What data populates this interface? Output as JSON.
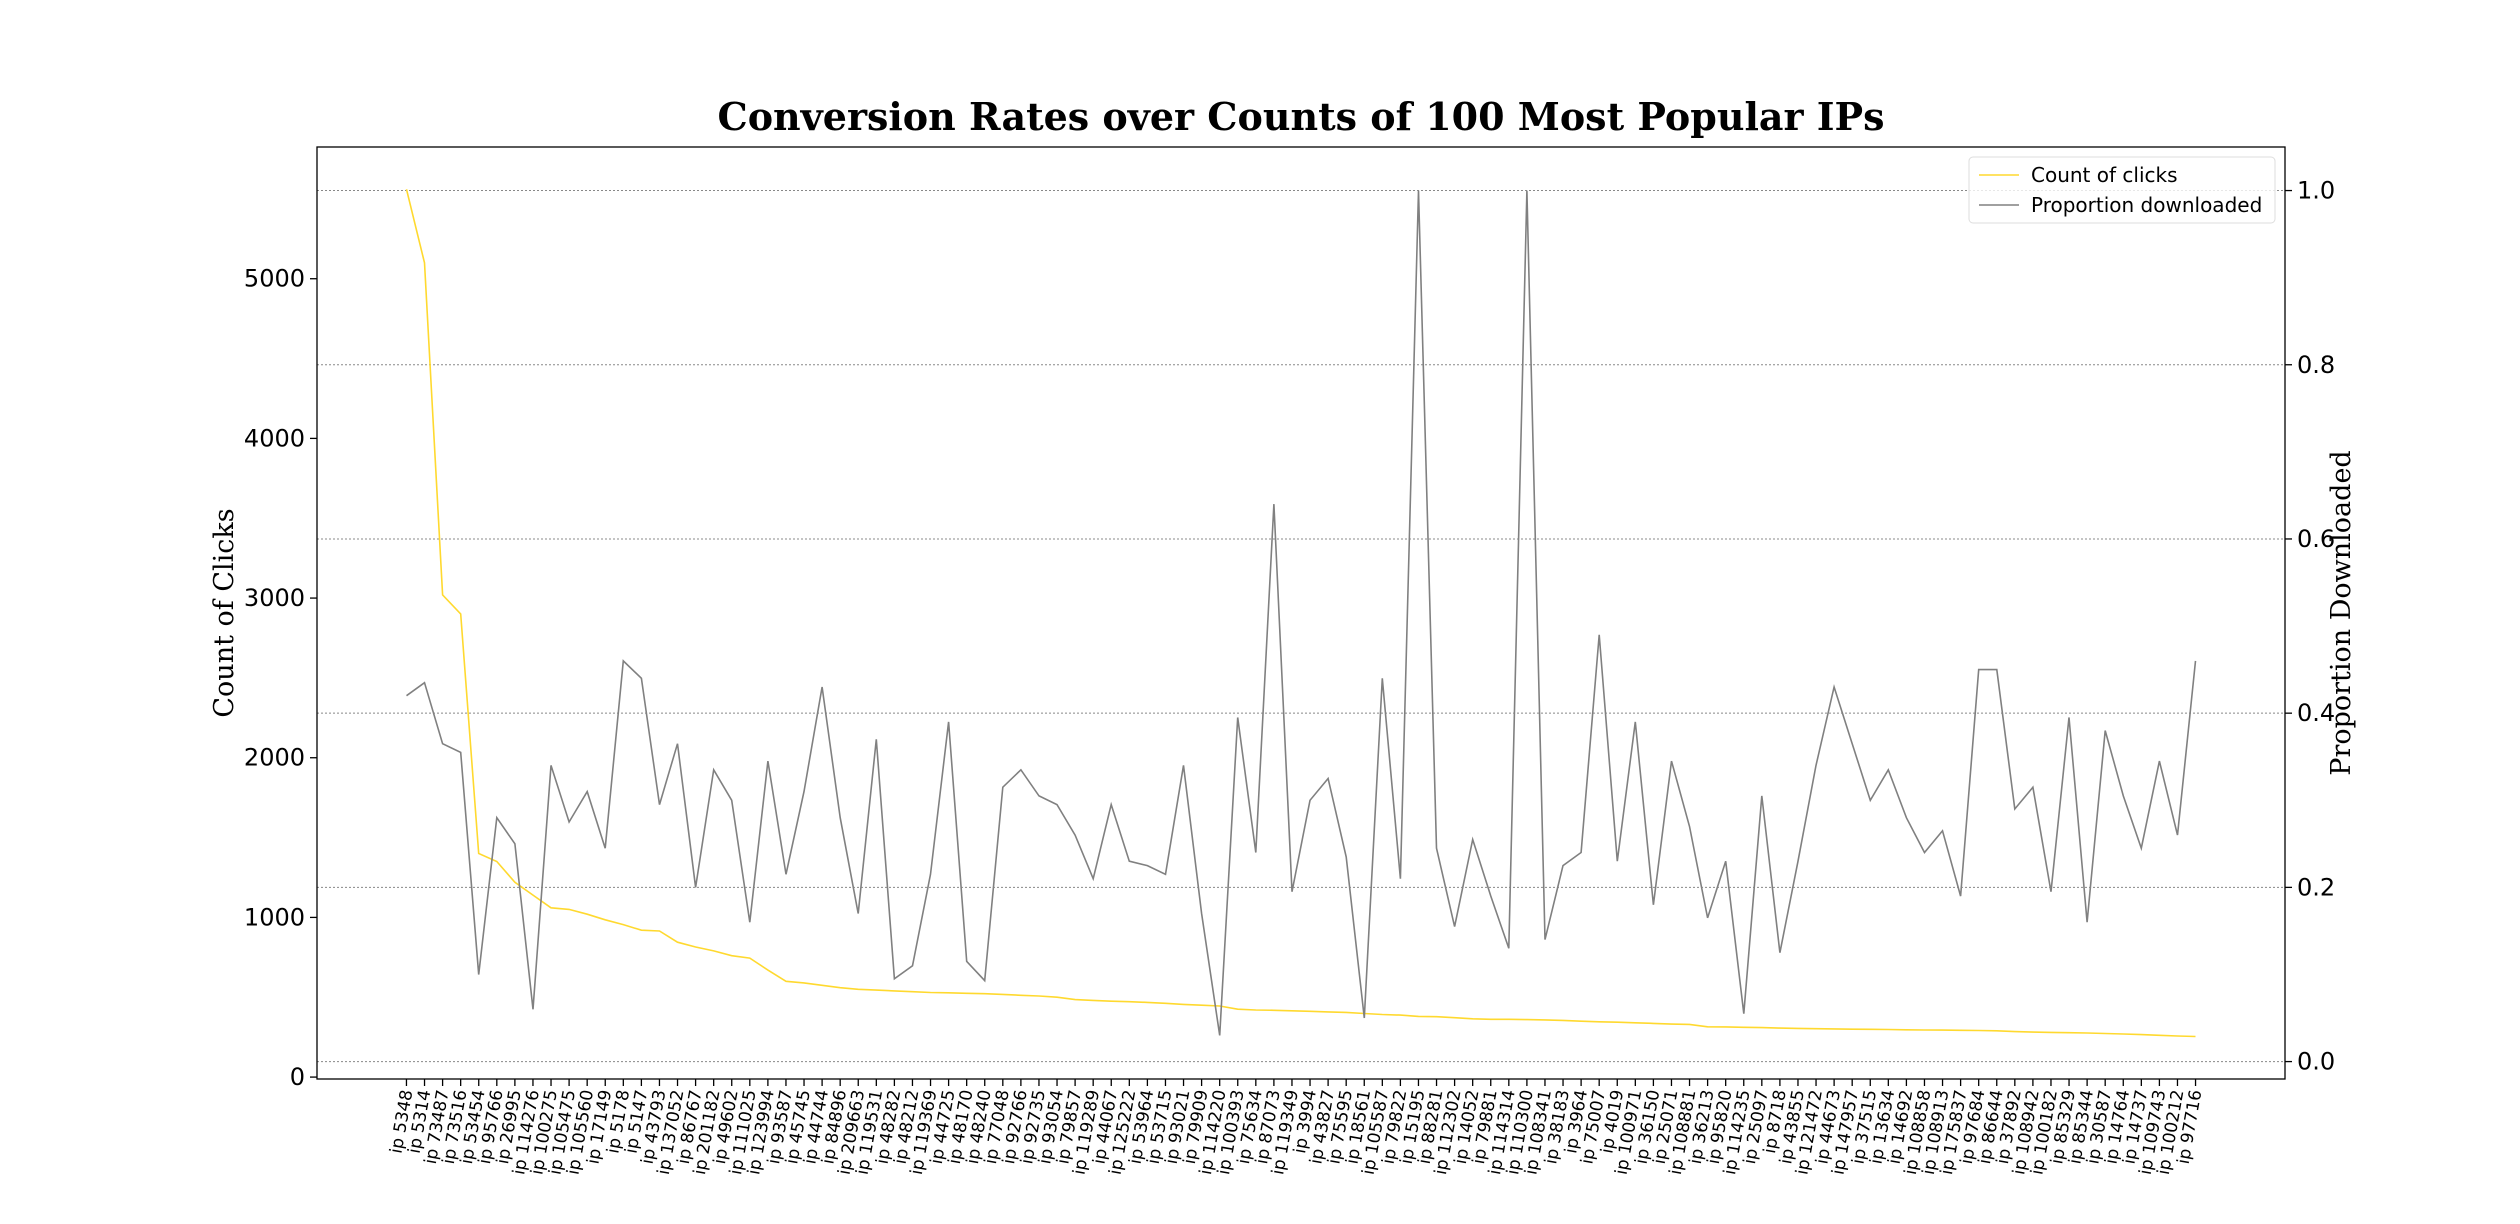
{
  "chart_data": {
    "type": "line",
    "title": "Conversion Rates over Counts of 100 Most Popular IPs",
    "y_label": "Count of Clicks",
    "y2_label": "Proportion Downloaded",
    "categories": [
      "ip 5348",
      "ip 5314",
      "ip 73487",
      "ip 73516",
      "ip 53454",
      "ip 95766",
      "ip 26995",
      "ip 114276",
      "ip 100275",
      "ip 105475",
      "ip 105560",
      "ip 17149",
      "ip 5178",
      "ip 5147",
      "ip 43793",
      "ip 137052",
      "ip 86767",
      "ip 201182",
      "ip 49602",
      "ip 111025",
      "ip 123994",
      "ip 93587",
      "ip 45745",
      "ip 44744",
      "ip 84896",
      "ip 209663",
      "ip 119531",
      "ip 48282",
      "ip 48212",
      "ip 119369",
      "ip 44725",
      "ip 48170",
      "ip 48240",
      "ip 77048",
      "ip 92766",
      "ip 92735",
      "ip 93054",
      "ip 79857",
      "ip 119289",
      "ip 44067",
      "ip 125222",
      "ip 53964",
      "ip 53715",
      "ip 93021",
      "ip 79909",
      "ip 114220",
      "ip 100393",
      "ip 75634",
      "ip 87073",
      "ip 119349",
      "ip 3994",
      "ip 43827",
      "ip 75595",
      "ip 18561",
      "ip 105587",
      "ip 79822",
      "ip 15195",
      "ip 88281",
      "ip 112302",
      "ip 14052",
      "ip 79881",
      "ip 114314",
      "ip 110300",
      "ip 108341",
      "ip 38183",
      "ip 3964",
      "ip 75007",
      "ip 4019",
      "ip 100971",
      "ip 36150",
      "ip 25071",
      "ip 108881",
      "ip 36213",
      "ip 95820",
      "ip 114235",
      "ip 25097",
      "ip 8718",
      "ip 43855",
      "ip 121472",
      "ip 44673",
      "ip 147957",
      "ip 37515",
      "ip 13634",
      "ip 14692",
      "ip 108858",
      "ip 108913",
      "ip 175837",
      "ip 97684",
      "ip 86644",
      "ip 37892",
      "ip 108942",
      "ip 100182",
      "ip 85329",
      "ip 85344",
      "ip 30587",
      "ip 14764",
      "ip 14737",
      "ip 109743",
      "ip 100212",
      "ip 97716"
    ],
    "series": [
      {
        "name": "Count of clicks",
        "color": "#ffd92f",
        "values": [
          5560,
          5100,
          3020,
          2900,
          1400,
          1350,
          1220,
          1140,
          1060,
          1050,
          1020,
          985,
          955,
          920,
          915,
          845,
          815,
          790,
          760,
          745,
          670,
          600,
          590,
          575,
          560,
          550,
          545,
          540,
          535,
          530,
          528,
          525,
          522,
          518,
          512,
          508,
          500,
          485,
          480,
          475,
          472,
          468,
          462,
          455,
          450,
          445,
          425,
          420,
          418,
          415,
          412,
          408,
          405,
          398,
          392,
          388,
          380,
          378,
          372,
          365,
          362,
          362,
          360,
          358,
          355,
          350,
          346,
          344,
          340,
          336,
          332,
          330,
          315,
          314,
          312,
          310,
          307,
          305,
          303,
          302,
          300,
          299,
          298,
          296,
          295,
          294,
          293,
          292,
          290,
          285,
          282,
          280,
          278,
          276,
          273,
          270,
          266,
          262,
          257,
          254
        ]
      },
      {
        "name": "Proportion downloaded",
        "color": "#808080",
        "axis": "y2",
        "values": [
          0.42,
          0.435,
          0.365,
          0.355,
          0.1,
          0.28,
          0.25,
          0.06,
          0.34,
          0.275,
          0.31,
          0.245,
          0.46,
          0.44,
          0.295,
          0.365,
          0.2,
          0.335,
          0.3,
          0.16,
          0.345,
          0.215,
          0.31,
          0.43,
          0.28,
          0.17,
          0.37,
          0.095,
          0.11,
          0.215,
          0.39,
          0.115,
          0.093,
          0.315,
          0.335,
          0.305,
          0.295,
          0.26,
          0.21,
          0.295,
          0.23,
          0.225,
          0.215,
          0.34,
          0.17,
          0.03,
          0.395,
          0.24,
          0.64,
          0.195,
          0.3,
          0.325,
          0.235,
          0.05,
          0.44,
          0.21,
          1.0,
          0.245,
          0.155,
          0.255,
          0.19,
          0.13,
          1.0,
          0.14,
          0.225,
          0.24,
          0.49,
          0.23,
          0.39,
          0.18,
          0.345,
          0.27,
          0.165,
          0.23,
          0.055,
          0.305,
          0.125,
          0.23,
          0.34,
          0.43,
          0.365,
          0.3,
          0.335,
          0.28,
          0.24,
          0.265,
          0.19,
          0.45,
          0.45,
          0.29,
          0.315,
          0.195,
          0.395,
          0.16,
          0.38,
          0.305,
          0.245,
          0.345,
          0.26,
          0.46
        ]
      }
    ],
    "ylim": [
      -12,
      5825
    ],
    "yticks": [
      0,
      1000,
      2000,
      3000,
      4000,
      5000
    ],
    "y2lim": [
      -0.02,
      1.05
    ],
    "y2ticks": [
      {
        "value": 0,
        "label": "0.0"
      },
      0.2,
      0.4,
      0.6,
      0.8,
      {
        "value": 1,
        "label": "1.0"
      }
    ],
    "grid": "y2",
    "legend": "upper right"
  }
}
